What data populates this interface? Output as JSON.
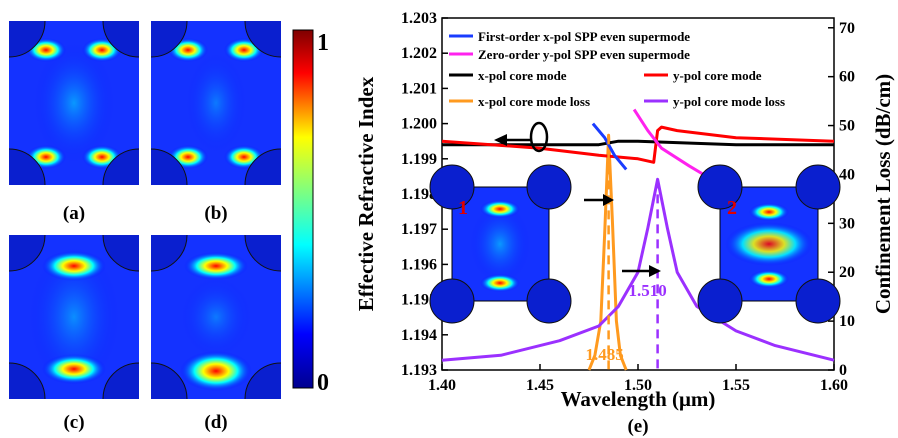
{
  "panels": {
    "a": "(a)",
    "b": "(b)",
    "c": "(c)",
    "d": "(d)",
    "e": "(e)"
  },
  "colorbar": {
    "max_label": "1",
    "min_label": "0",
    "colors": [
      "#00008f",
      "#0000ff",
      "#00ffff",
      "#7fff7f",
      "#ffff00",
      "#ff0000",
      "#7f0000"
    ]
  },
  "inset_labels": {
    "one": "1",
    "two": "2"
  },
  "chart_data": {
    "type": "line",
    "xlabel": "Wavelength (μm)",
    "ylabel_left": "Effective Refractive Index",
    "ylabel_right": "Confinement Loss (dB/cm)",
    "xlim": [
      1.4,
      1.6
    ],
    "ylim_left": [
      1.193,
      1.203
    ],
    "ylim_right": [
      0,
      72
    ],
    "xticks": [
      "1.40",
      "1.45",
      "1.50",
      "1.55",
      "1.60"
    ],
    "yticks_left": [
      "1.193",
      "1.194",
      "1.195",
      "1.196",
      "1.197",
      "1.198",
      "1.199",
      "1.200",
      "1.201",
      "1.202",
      "1.203"
    ],
    "yticks_right": [
      "0",
      "10",
      "20",
      "30",
      "40",
      "50",
      "60",
      "70"
    ],
    "legend": [
      {
        "label": "First-order x-pol SPP even supermode",
        "color": "#1a3cff"
      },
      {
        "label": "Zero-order y-pol SPP even supermode",
        "color": "#ff22ee"
      },
      {
        "label": "x-pol core mode",
        "color": "#000000"
      },
      {
        "label": "y-pol core mode",
        "color": "#ff0000"
      },
      {
        "label": "x-pol core mode loss",
        "color": "#ff9a1f"
      },
      {
        "label": "y-pol core mode loss",
        "color": "#9b30ff"
      }
    ],
    "series": [
      {
        "name": "First-order x-pol SPP even supermode",
        "axis": "left",
        "color": "#1a3cff",
        "x": [
          1.477,
          1.483,
          1.488,
          1.494
        ],
        "y": [
          1.2,
          1.1996,
          1.1991,
          1.1987
        ]
      },
      {
        "name": "Zero-order y-pol SPP even supermode",
        "axis": "left",
        "color": "#ff22ee",
        "x": [
          1.498,
          1.505,
          1.512,
          1.526,
          1.541
        ],
        "y": [
          1.2004,
          1.1998,
          1.1993,
          1.1988,
          1.1983
        ]
      },
      {
        "name": "x-pol core mode",
        "axis": "left",
        "color": "#000000",
        "x": [
          1.4,
          1.45,
          1.48,
          1.49,
          1.5,
          1.55,
          1.6
        ],
        "y": [
          1.1994,
          1.1994,
          1.1994,
          1.1995,
          1.1995,
          1.1994,
          1.1994
        ]
      },
      {
        "name": "y-pol core mode",
        "axis": "left",
        "color": "#ff0000",
        "x": [
          1.4,
          1.45,
          1.48,
          1.5,
          1.508,
          1.51,
          1.512,
          1.52,
          1.55,
          1.6
        ],
        "y": [
          1.1995,
          1.1993,
          1.1991,
          1.199,
          1.1989,
          1.1998,
          1.1999,
          1.1998,
          1.1996,
          1.1995
        ]
      },
      {
        "name": "x-pol core mode loss",
        "axis": "right",
        "color": "#ff9a1f",
        "x": [
          1.475,
          1.478,
          1.481,
          1.483,
          1.485,
          1.487,
          1.489,
          1.491,
          1.494
        ],
        "y": [
          0,
          3,
          10,
          28,
          48,
          30,
          10,
          3,
          0
        ]
      },
      {
        "name": "y-pol core mode loss",
        "axis": "right",
        "color": "#9b30ff",
        "x": [
          1.4,
          1.43,
          1.46,
          1.48,
          1.49,
          1.5,
          1.505,
          1.51,
          1.515,
          1.52,
          1.53,
          1.55,
          1.57,
          1.6
        ],
        "y": [
          2,
          3,
          6,
          9,
          13,
          20,
          29,
          39,
          29,
          20,
          13,
          8,
          5,
          2
        ]
      }
    ],
    "annotations": [
      {
        "text": "1.485",
        "x": 1.485,
        "color": "#ff9a1f"
      },
      {
        "text": "1.510",
        "x": 1.51,
        "color": "#9b30ff"
      }
    ]
  }
}
